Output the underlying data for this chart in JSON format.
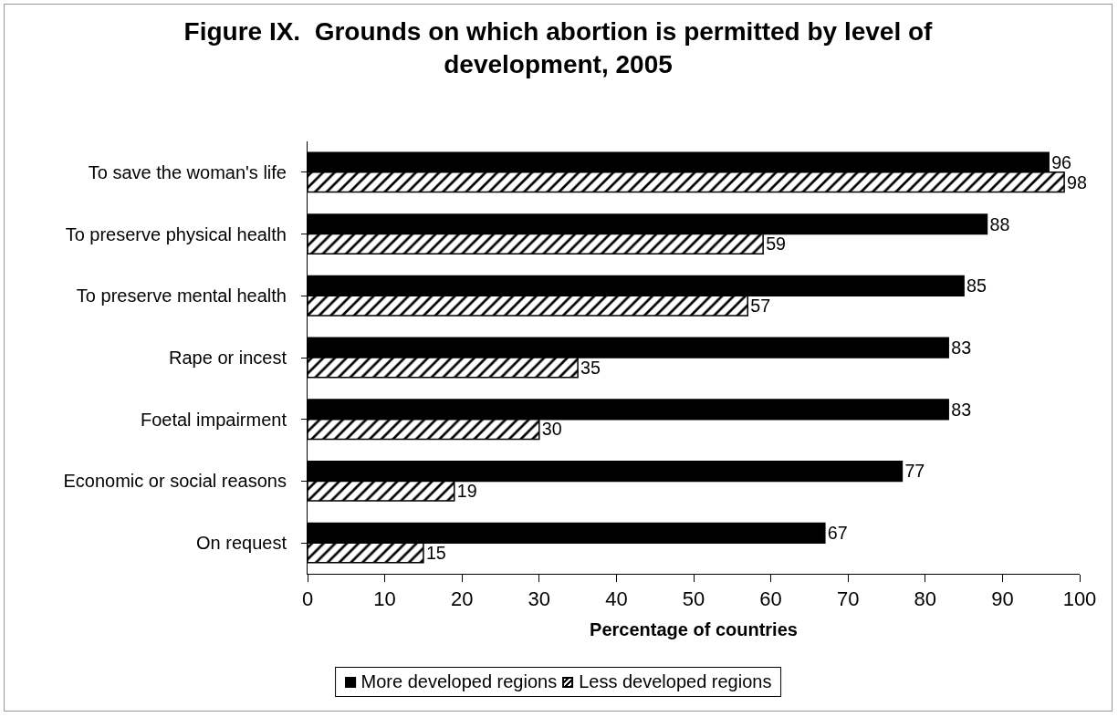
{
  "chart_data": {
    "type": "bar",
    "orientation": "horizontal",
    "title": "Figure IX.  Grounds on which abortion is permitted by level of development, 2005",
    "xlabel": "Percentage of countries",
    "categories": [
      "To save the woman's life",
      "To preserve physical health",
      "To preserve mental health",
      "Rape or incest",
      "Foetal impairment",
      "Economic or social reasons",
      "On request"
    ],
    "series": [
      {
        "name": "More developed regions",
        "color": "#000000",
        "values": [
          96,
          88,
          85,
          83,
          83,
          77,
          67
        ]
      },
      {
        "name": "Less developed regions",
        "color": "#000000",
        "values": [
          98,
          59,
          57,
          35,
          30,
          19,
          15
        ]
      }
    ],
    "xlim": [
      0,
      100
    ],
    "xticks": [
      0,
      10,
      20,
      30,
      40,
      50,
      60,
      70,
      80,
      90,
      100
    ],
    "grid": false,
    "legend": "bottom",
    "data_labels": true
  }
}
